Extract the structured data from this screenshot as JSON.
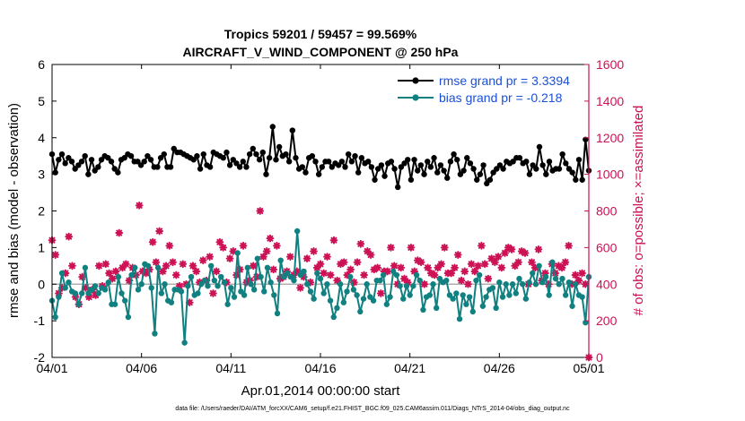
{
  "chart_data": {
    "type": "line",
    "title_line1": "Tropics 59201 / 59457 = 99.569%",
    "title_line2": "AIRCRAFT_V_WIND_COMPONENT @ 250 hPa",
    "xlabel": "Apr.01,2014 00:00:00 start",
    "ylabel_left": "rmse and bias (model - observation)",
    "ylabel_right": "# of obs: o=possible; ×=assimilated",
    "footer": "data file: /Users/raeder/DAI/ATM_forcXX/CAM6_setup/f.e21.FHIST_BGC.f09_025.CAM6assim.011/Diags_NTrS_2014-04/obs_diag_output.nc",
    "xlim": [
      0,
      30
    ],
    "ylim_left": [
      -2,
      6
    ],
    "ylim_right": [
      0,
      1600
    ],
    "x_ticks": [
      0,
      5,
      10,
      15,
      20,
      25,
      30
    ],
    "x_tick_labels": [
      "04/01",
      "04/06",
      "04/11",
      "04/16",
      "04/21",
      "04/26",
      "05/01"
    ],
    "y_ticks_left": [
      -2,
      -1,
      0,
      1,
      2,
      3,
      4,
      5,
      6
    ],
    "y_ticks_right": [
      0,
      200,
      400,
      600,
      800,
      1000,
      1200,
      1400,
      1600
    ],
    "legend": {
      "rmse": "rmse grand pr = 3.3394",
      "bias": "bias grand pr = -0.218"
    },
    "colors": {
      "rmse": "#000000",
      "bias": "#108080",
      "obs": "#cc1155",
      "legend_text": "#1a4fd8",
      "zero_line": "#b0b0b0",
      "right_axis": "#cc1155"
    },
    "series": [
      {
        "name": "rmse",
        "values": [
          3.55,
          3.05,
          3.4,
          3.55,
          3.3,
          3.45,
          3.35,
          3.15,
          3.25,
          3.35,
          3.5,
          3.0,
          3.4,
          3.1,
          3.2,
          3.4,
          3.5,
          3.45,
          3.35,
          3.15,
          3.05,
          3.4,
          3.45,
          3.55,
          3.5,
          3.35,
          3.35,
          3.25,
          3.35,
          3.5,
          3.4,
          3.2,
          3.2,
          3.45,
          3.55,
          3.2,
          3.2,
          3.7,
          3.6,
          3.6,
          3.55,
          3.5,
          3.45,
          3.4,
          3.5,
          3.15,
          3.55,
          3.25,
          3.2,
          3.6,
          3.55,
          3.5,
          3.45,
          3.6,
          3.25,
          3.4,
          3.3,
          3.2,
          3.35,
          3.2,
          3.55,
          3.7,
          3.55,
          3.4,
          3.6,
          3.0,
          3.45,
          4.3,
          3.4,
          3.75,
          3.5,
          3.55,
          3.35,
          4.2,
          3.45,
          3.15,
          3.2,
          3.05,
          3.45,
          3.5,
          3.35,
          3.0,
          3.2,
          3.35,
          3.35,
          3.2,
          3.3,
          3.25,
          3.35,
          3.2,
          3.55,
          3.35,
          3.5,
          3.05,
          3.45,
          3.3,
          3.35,
          3.2,
          2.85,
          3.15,
          3.25,
          2.95,
          3.3,
          3.35,
          3.15,
          2.65,
          3.2,
          3.3,
          3.4,
          2.85,
          3.4,
          3.1,
          3.25,
          3.0,
          3.35,
          3.2,
          3.45,
          3.05,
          3.25,
          3.1,
          2.9,
          3.35,
          3.55,
          3.4,
          3.0,
          3.1,
          3.45,
          3.3,
          3.15,
          2.85,
          3.0,
          3.25,
          2.75,
          2.85,
          3.05,
          3.15,
          3.25,
          3.15,
          3.35,
          3.3,
          3.35,
          3.45,
          3.45,
          3.3,
          3.35,
          3.0,
          3.25,
          3.15,
          3.75,
          3.25,
          3.0,
          3.35,
          3.1,
          3.15,
          3.15,
          3.55,
          3.3,
          3.15,
          3.05,
          2.85,
          3.4,
          2.85,
          3.95,
          3.1
        ]
      },
      {
        "name": "bias",
        "values": [
          -0.45,
          -0.9,
          -0.35,
          0.3,
          -0.1,
          0.05,
          -0.2,
          -0.25,
          -0.55,
          -0.25,
          0.45,
          -0.25,
          -0.15,
          -0.05,
          -0.25,
          -0.1,
          -0.15,
          0.05,
          -0.55,
          -0.55,
          0.2,
          -0.25,
          -0.45,
          -0.9,
          0.25,
          0.45,
          -0.15,
          0.0,
          0.55,
          0.5,
          -0.1,
          -1.35,
          0.45,
          -0.25,
          0.0,
          -0.45,
          -0.5,
          -0.15,
          -0.15,
          -0.2,
          -1.6,
          -0.05,
          0.2,
          -0.3,
          -0.25,
          0.0,
          0.1,
          -0.05,
          0.5,
          0.1,
          -0.05,
          0.2,
          0.05,
          -0.55,
          -0.1,
          -0.35,
          0.85,
          -0.2,
          -0.3,
          0.45,
          0.0,
          -0.15,
          0.7,
          0.2,
          -0.2,
          0.45,
          0.05,
          -0.3,
          -0.8,
          0.65,
          0.2,
          0.3,
          0.2,
          0.1,
          1.45,
          0.25,
          0.35,
          0.0,
          -0.2,
          -0.4,
          0.3,
          0.15,
          -0.25,
          0.0,
          -0.45,
          -0.9,
          -0.65,
          0.0,
          -0.5,
          -0.2,
          0.2,
          -0.15,
          -0.3,
          -0.75,
          -0.4,
          0.0,
          -0.35,
          -0.45,
          0.1,
          0.1,
          0.25,
          -0.55,
          -0.35,
          0.35,
          0.25,
          -0.05,
          -0.4,
          -0.05,
          -0.3,
          -0.05,
          0.25,
          0.1,
          -0.7,
          -0.35,
          -0.3,
          0.0,
          -0.65,
          0.15,
          0.05,
          0.1,
          -0.3,
          -0.4,
          -0.25,
          -0.95,
          -0.3,
          -0.55,
          -0.35,
          -0.75,
          0.1,
          0.25,
          -0.6,
          -0.35,
          -0.15,
          -0.1,
          -0.65,
          0.05,
          -0.35,
          0.0,
          -0.3,
          0.0,
          -0.25,
          0.15,
          0.0,
          -0.4,
          0.05,
          0.3,
          0.0,
          0.5,
          0.05,
          0.2,
          -0.3,
          0.6,
          0.15,
          0.0,
          0.15,
          -0.3,
          0.05,
          -0.6,
          0.0,
          -0.3,
          -0.35,
          -1.05,
          0.2
        ]
      },
      {
        "name": "obs",
        "values": [
          640,
          560,
          350,
          380,
          460,
          660,
          500,
          330,
          290,
          440,
          380,
          330,
          370,
          340,
          500,
          390,
          510,
          460,
          430,
          470,
          680,
          490,
          510,
          420,
          490,
          450,
          830,
          470,
          460,
          480,
          630,
          520,
          690,
          470,
          500,
          610,
          520,
          450,
          390,
          510,
          400,
          300,
          500,
          470,
          410,
          530,
          420,
          550,
          350,
          470,
          630,
          600,
          410,
          540,
          580,
          450,
          480,
          610,
          410,
          420,
          500,
          440,
          800,
          550,
          580,
          650,
          480,
          610,
          430,
          440,
          470,
          550,
          450,
          470,
          380,
          440,
          540,
          410,
          580,
          490,
          510,
          460,
          550,
          450,
          640,
          420,
          510,
          520,
          450,
          480,
          410,
          520,
          620,
          450,
          580,
          560,
          480,
          490,
          350,
          470,
          470,
          600,
          500,
          400,
          490,
          430,
          410,
          600,
          470,
          530,
          520,
          400,
          490,
          460,
          450,
          490,
          510,
          600,
          460,
          460,
          490,
          560,
          420,
          470,
          400,
          510,
          470,
          500,
          610,
          510,
          430,
          540,
          520,
          550,
          490,
          570,
          600,
          590,
          500,
          520,
          580,
          570,
          400,
          520,
          490,
          590,
          420,
          460,
          400,
          510,
          460,
          500,
          490,
          520,
          610,
          400,
          450,
          420,
          460,
          400,
          0
        ]
      }
    ]
  }
}
